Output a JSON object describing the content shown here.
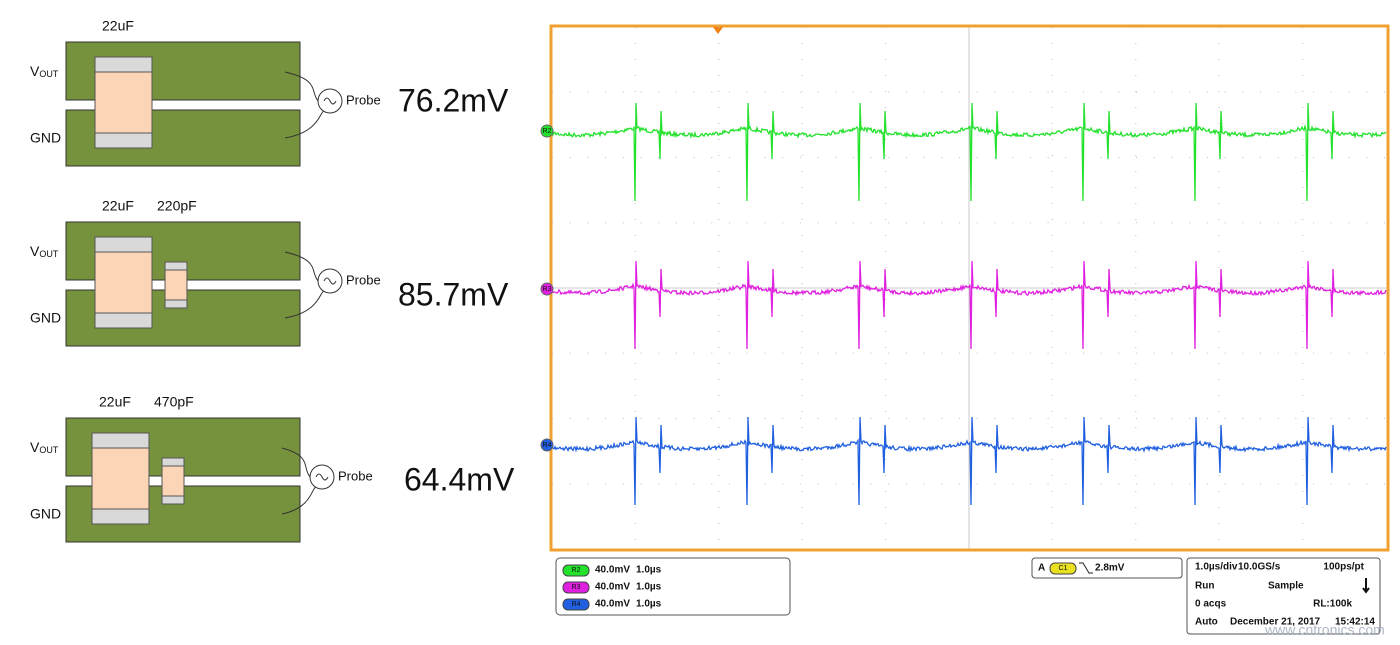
{
  "circuits": [
    {
      "caps": [
        "22uF"
      ],
      "vout": "V",
      "vout_sub": "OUT",
      "gnd": "GND",
      "probe": "Probe",
      "ripple": "76.2mV"
    },
    {
      "caps": [
        "22uF",
        "220pF"
      ],
      "vout": "V",
      "vout_sub": "OUT",
      "gnd": "GND",
      "probe": "Probe",
      "ripple": "85.7mV"
    },
    {
      "caps": [
        "22uF",
        "470pF"
      ],
      "vout": "V",
      "vout_sub": "OUT",
      "gnd": "GND",
      "probe": "Probe",
      "ripple": "64.4mV"
    }
  ],
  "scope": {
    "channels": [
      {
        "label": "R2",
        "scale": "40.0mV",
        "time": "1.0µs",
        "color": "#22e22c"
      },
      {
        "label": "R3",
        "scale": "40.0mV",
        "time": "1.0µs",
        "color": "#e020e0"
      },
      {
        "label": "R4",
        "scale": "40.0mV",
        "time": "1.0µs",
        "color": "#1f5fe0"
      }
    ],
    "trigger": {
      "source": "A",
      "channel": "C1",
      "level": "2.8mV"
    },
    "acquisition": {
      "timebase": "1.0µs/div",
      "rate": "10.0GS/s",
      "resolution": "100ps/pt",
      "state": "Run",
      "mode": "Sample",
      "acqs": "0 acqs",
      "record": "RL:100k",
      "trigger_mode": "Auto",
      "date": "December 21, 2017",
      "time": "15:42:14"
    },
    "watermark": "www.cntronics.com"
  }
}
